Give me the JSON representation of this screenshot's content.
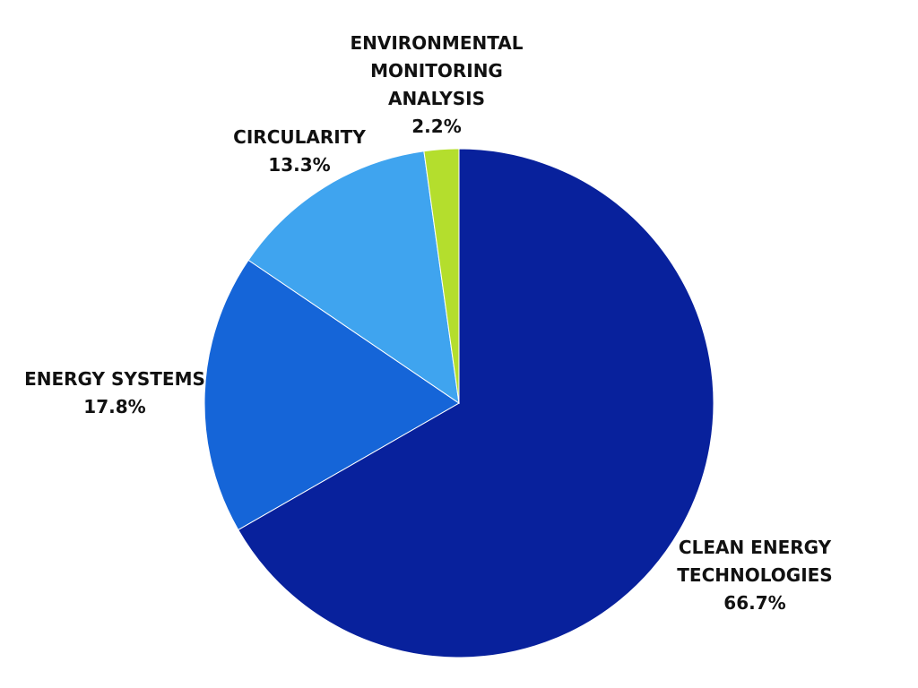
{
  "chart_data": {
    "type": "pie",
    "start": "top",
    "direction": "clockwise",
    "slices": [
      {
        "name": "CLEAN ENERGY TECHNOLOGIES",
        "label_lines": [
          "CLEAN ENERGY",
          "TECHNOLOGIES"
        ],
        "value": 66.7,
        "value_label": "66.7%",
        "color": "#08219c"
      },
      {
        "name": "ENERGY SYSTEMS",
        "label_lines": [
          "ENERGY SYSTEMS"
        ],
        "value": 17.8,
        "value_label": "17.8%",
        "color": "#1565d8"
      },
      {
        "name": "CIRCULARITY",
        "label_lines": [
          "CIRCULARITY"
        ],
        "value": 13.3,
        "value_label": "13.3%",
        "color": "#3fa4ef"
      },
      {
        "name": "ENVIRONMENTAL MONITORING ANALYSIS",
        "label_lines": [
          "ENVIRONMENTAL",
          "MONITORING",
          "ANALYSIS"
        ],
        "value": 2.2,
        "value_label": "2.2%",
        "color": "#b4de2d"
      }
    ]
  }
}
